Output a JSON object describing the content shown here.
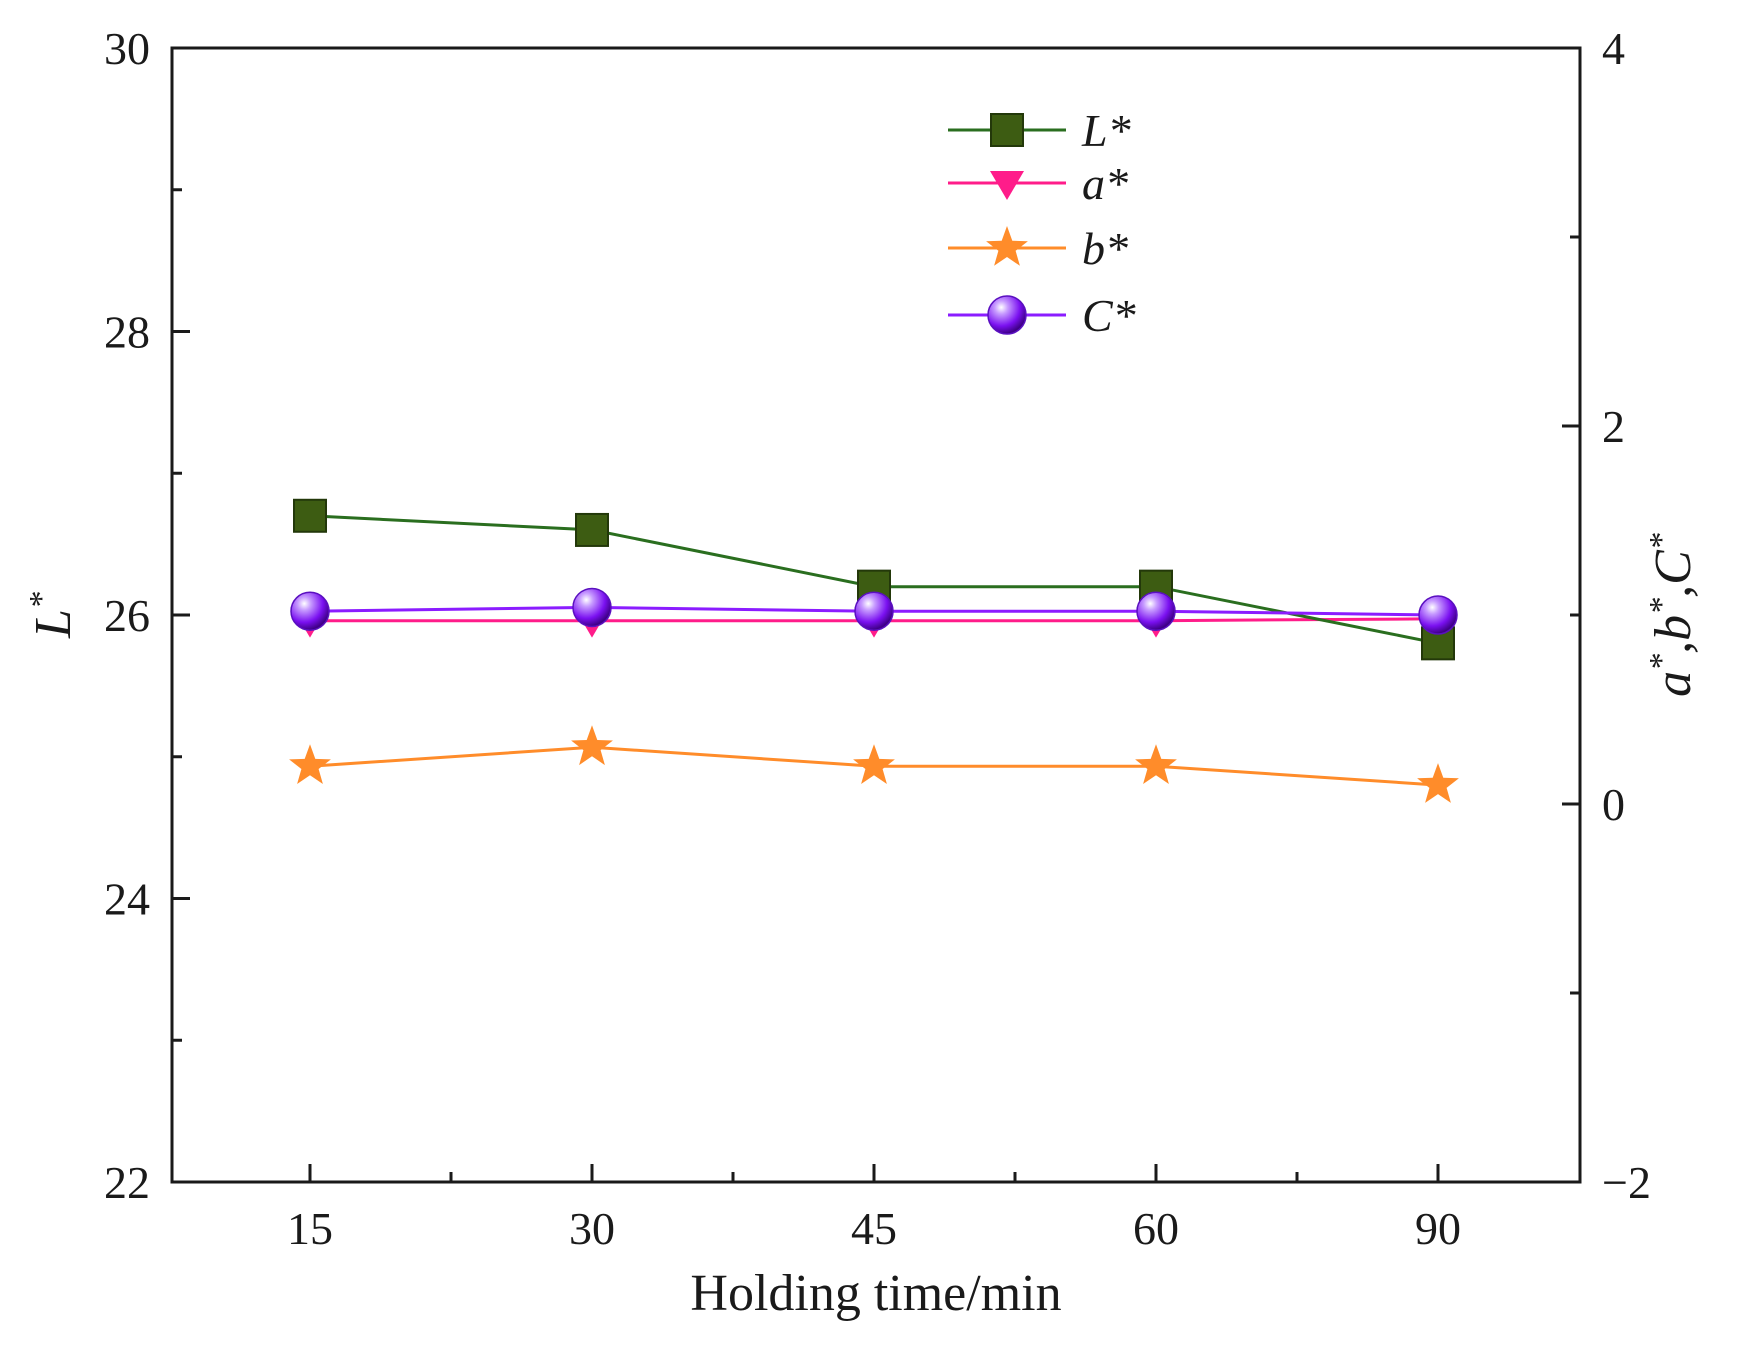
{
  "chart_data": {
    "type": "line",
    "xlabel": "Holding time/min",
    "ylabel_left": {
      "base": "L",
      "sup": "*"
    },
    "ylabel_right": [
      {
        "base": "a",
        "sup": "*"
      },
      {
        "base": ",b",
        "sup": "*"
      },
      {
        "base": ",C",
        "sup": "*"
      }
    ],
    "categories": [
      "15",
      "30",
      "45",
      "60",
      "90"
    ],
    "ylim_left": [
      22,
      30
    ],
    "ylim_right": [
      -2,
      4
    ],
    "left_ticks": [
      "22",
      "24",
      "26",
      "28",
      "30"
    ],
    "right_ticks": [
      "−2",
      "0",
      "2",
      "4"
    ],
    "grid": false,
    "legend_position": "top-center",
    "series": [
      {
        "name": "L*",
        "axis": "left",
        "marker": "square",
        "color": "#2a6e1f",
        "marker_color": "#3d5c12",
        "values": [
          26.7,
          26.6,
          26.2,
          26.2,
          25.8
        ]
      },
      {
        "name": "a*",
        "axis": "right",
        "marker": "triangle-down",
        "color": "#ff1c8a",
        "marker_color": "#ff1c8a",
        "values": [
          0.97,
          0.97,
          0.97,
          0.97,
          0.98
        ]
      },
      {
        "name": "b*",
        "axis": "right",
        "marker": "star",
        "color": "#ff8c2a",
        "marker_color": "#ff8c2a",
        "values": [
          0.2,
          0.3,
          0.2,
          0.2,
          0.1
        ]
      },
      {
        "name": "C*",
        "axis": "right",
        "marker": "sphere",
        "color": "#8b1cff",
        "marker_color": "#8b1cff",
        "values": [
          1.02,
          1.04,
          1.02,
          1.02,
          1.0
        ]
      }
    ]
  }
}
